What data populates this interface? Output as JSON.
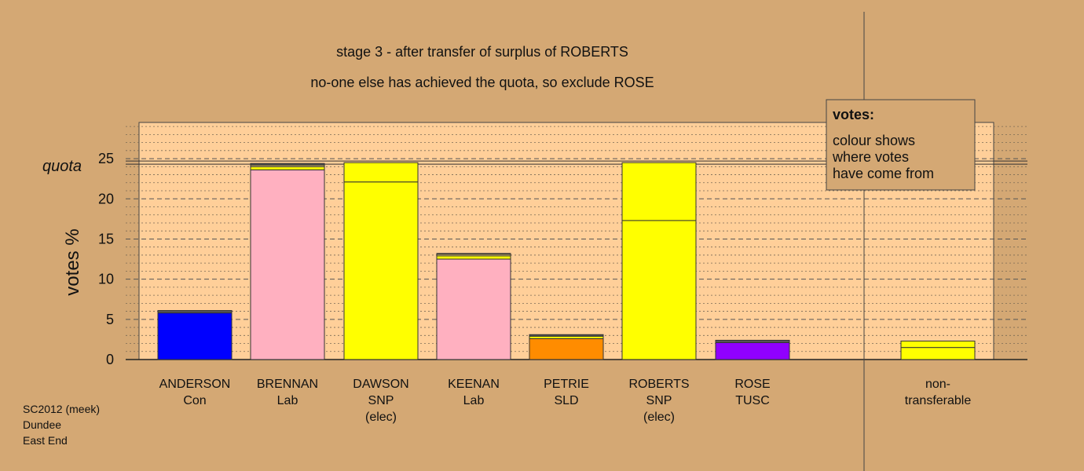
{
  "chart_data": {
    "type": "bar",
    "title": "stage 3 - after transfer of surplus of ROBERTS",
    "subtitle": "no-one else has achieved the quota, so exclude ROSE",
    "ylabel": "votes %",
    "quota_label": "quota",
    "quota": 24.5,
    "ylim": [
      0,
      29.5
    ],
    "yticks": [
      0,
      5,
      10,
      15,
      20,
      25
    ],
    "grid": true,
    "legend": {
      "title": "votes:",
      "lines": [
        "colour shows",
        "where votes",
        "have come from"
      ],
      "placement": "top-right"
    },
    "candidates": [
      {
        "name": "ANDERSON",
        "party": "Con",
        "note": "",
        "segments": [
          {
            "value": 5.8,
            "color": "#0000ff"
          },
          {
            "value": 0.3,
            "color": "#555555"
          }
        ]
      },
      {
        "name": "BRENNAN",
        "party": "Lab",
        "note": "",
        "segments": [
          {
            "value": 23.6,
            "color": "#ffb0c0"
          },
          {
            "value": 0.4,
            "color": "#ffff00"
          },
          {
            "value": 0.2,
            "color": "#f0d070"
          },
          {
            "value": 0.2,
            "color": "#555555"
          }
        ]
      },
      {
        "name": "DAWSON",
        "party": "SNP",
        "note": "(elec)",
        "segments": [
          {
            "value": 22.1,
            "color": "#ffff00"
          },
          {
            "value": 2.4,
            "color": "#ffff00"
          }
        ]
      },
      {
        "name": "KEENAN",
        "party": "Lab",
        "note": "",
        "segments": [
          {
            "value": 12.5,
            "color": "#ffb0c0"
          },
          {
            "value": 0.4,
            "color": "#ffff00"
          },
          {
            "value": 0.2,
            "color": "#f0d070"
          },
          {
            "value": 0.1,
            "color": "#555555"
          }
        ]
      },
      {
        "name": "PETRIE",
        "party": "SLD",
        "note": "",
        "segments": [
          {
            "value": 2.6,
            "color": "#ff8c00"
          },
          {
            "value": 0.3,
            "color": "#ffff00"
          },
          {
            "value": 0.2,
            "color": "#555555"
          }
        ]
      },
      {
        "name": "ROBERTS",
        "party": "SNP",
        "note": "(elec)",
        "segments": [
          {
            "value": 17.3,
            "color": "#ffff00"
          },
          {
            "value": 7.2,
            "color": "#ffff00"
          }
        ]
      },
      {
        "name": "ROSE",
        "party": "TUSC",
        "note": "",
        "segments": [
          {
            "value": 2.1,
            "color": "#9000ff"
          },
          {
            "value": 0.3,
            "color": "#555555"
          }
        ]
      }
    ],
    "nontransferable": {
      "label_line1": "non-",
      "label_line2": "transferable",
      "segments": [
        {
          "value": 1.5,
          "color": "#ffff00"
        },
        {
          "value": 0.8,
          "color": "#ffff00"
        }
      ]
    }
  },
  "footer": {
    "line1": "SC2012 (meek)",
    "line2": "Dundee",
    "line3": "East End"
  },
  "colors": {
    "background": "#d4a874",
    "plot_fill": "#ffcf99",
    "legend_fill": "#d4a874"
  }
}
